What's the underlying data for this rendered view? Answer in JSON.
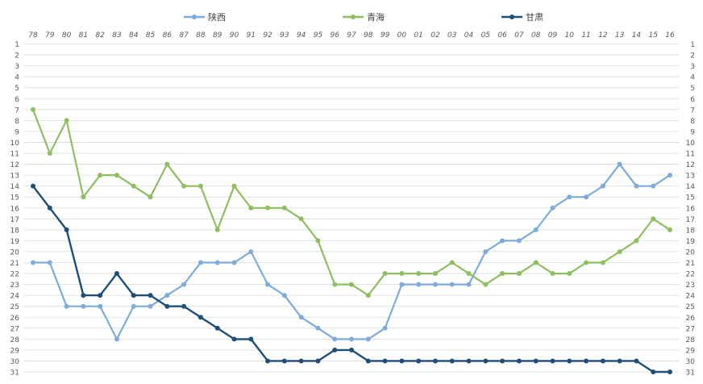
{
  "chart_data": {
    "type": "line",
    "title": "",
    "xlabel": "",
    "ylabel": "",
    "x": [
      "78",
      "79",
      "80",
      "81",
      "82",
      "83",
      "84",
      "85",
      "86",
      "87",
      "88",
      "89",
      "90",
      "91",
      "92",
      "93",
      "94",
      "95",
      "96",
      "97",
      "98",
      "99",
      "00",
      "01",
      "02",
      "03",
      "04",
      "05",
      "06",
      "07",
      "08",
      "09",
      "10",
      "11",
      "12",
      "13",
      "14",
      "15",
      "16"
    ],
    "ylim": [
      1,
      31
    ],
    "y_reversed": true,
    "y_ticks": [
      "1",
      "2",
      "3",
      "4",
      "5",
      "6",
      "7",
      "8",
      "9",
      "10",
      "11",
      "12",
      "13",
      "14",
      "15",
      "16",
      "17",
      "18",
      "19",
      "20",
      "21",
      "22",
      "23",
      "24",
      "25",
      "26",
      "27",
      "28",
      "29",
      "30",
      "31"
    ],
    "grid": "horizontal",
    "legend": "top",
    "series": [
      {
        "name": "陕西",
        "color": "#7dabdb",
        "values": [
          21,
          21,
          25,
          25,
          25,
          28,
          25,
          25,
          24,
          23,
          21,
          21,
          21,
          20,
          23,
          24,
          26,
          27,
          28,
          28,
          28,
          27,
          23,
          23,
          23,
          23,
          23,
          20,
          19,
          19,
          18,
          16,
          15,
          15,
          14,
          12,
          14,
          14,
          13
        ]
      },
      {
        "name": "青海",
        "color": "#8ebe5f",
        "values": [
          7,
          11,
          8,
          15,
          13,
          13,
          14,
          15,
          12,
          14,
          14,
          18,
          14,
          16,
          16,
          16,
          17,
          19,
          23,
          23,
          24,
          22,
          22,
          22,
          22,
          21,
          22,
          23,
          22,
          22,
          21,
          22,
          22,
          21,
          21,
          20,
          19,
          17,
          18
        ]
      },
      {
        "name": "甘肃",
        "color": "#1f4e79",
        "values": [
          14,
          16,
          18,
          24,
          24,
          22,
          24,
          24,
          25,
          25,
          26,
          27,
          28,
          28,
          30,
          30,
          30,
          30,
          29,
          29,
          30,
          30,
          30,
          30,
          30,
          30,
          30,
          30,
          30,
          30,
          30,
          30,
          30,
          30,
          30,
          30,
          30,
          31,
          31
        ]
      }
    ]
  }
}
